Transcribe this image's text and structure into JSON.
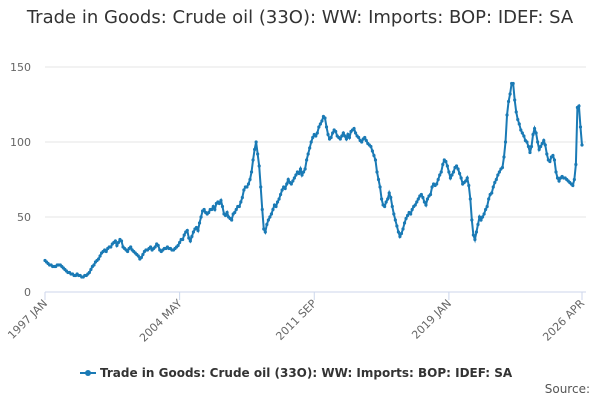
{
  "chart_data": {
    "type": "line",
    "title": "Trade in Goods: Crude oil (33O): WW: Imports: BOP: IDEF: SA",
    "source_label": "Source:",
    "categories": [
      "1997 JAN",
      null,
      null,
      null,
      null,
      null,
      null,
      null,
      null,
      null,
      null,
      null,
      null,
      null,
      null,
      null,
      null,
      null,
      null,
      null,
      null,
      null,
      null,
      null,
      null,
      null,
      null,
      null,
      null,
      null,
      null,
      null,
      null,
      null,
      null,
      null,
      null,
      null,
      null,
      null,
      null,
      null,
      null,
      null,
      null,
      null,
      null,
      null,
      null,
      null,
      null,
      null,
      null,
      null,
      null,
      null,
      null,
      null,
      null,
      null,
      null,
      null,
      null,
      null,
      null,
      null,
      null,
      null,
      null,
      null,
      null,
      null,
      null,
      null,
      null,
      null,
      null,
      null,
      null,
      null,
      null,
      null,
      null,
      null,
      null,
      null,
      null,
      null,
      "2004 MAY",
      null,
      null,
      null,
      null,
      null,
      null,
      null,
      null,
      null,
      null,
      null,
      null,
      null,
      null,
      null,
      null,
      null,
      null,
      null,
      null,
      null,
      null,
      null,
      null,
      null,
      null,
      null,
      null,
      null,
      null,
      null,
      null,
      null,
      null,
      null,
      null,
      null,
      null,
      null,
      null,
      null,
      null,
      null,
      null,
      null,
      null,
      null,
      null,
      null,
      null,
      null,
      null,
      null,
      null,
      null,
      null,
      null,
      null,
      null,
      null,
      null,
      null,
      null,
      null,
      null,
      null,
      null,
      null,
      null,
      null,
      null,
      null,
      null,
      null,
      null,
      null,
      null,
      null,
      null,
      null,
      null,
      null,
      null,
      null,
      null,
      null,
      null,
      "2011 SEP",
      null,
      null,
      null,
      null,
      null,
      null,
      null,
      null,
      null,
      null,
      null,
      null,
      null,
      null,
      null,
      null,
      null,
      null,
      null,
      null,
      null,
      null,
      null,
      null,
      null,
      null,
      null,
      null,
      null,
      null,
      null,
      null,
      null,
      null,
      null,
      null,
      null,
      null,
      null,
      null,
      null,
      null,
      null,
      null,
      null,
      null,
      null,
      null,
      null,
      null,
      null,
      null,
      null,
      null,
      null,
      null,
      null,
      null,
      null,
      null,
      null,
      null,
      null,
      null,
      null,
      null,
      null,
      null,
      null,
      null,
      null,
      null,
      null,
      null,
      null,
      null,
      null,
      null,
      null,
      null,
      null,
      null,
      null,
      null,
      null,
      null,
      null,
      "2019 JAN",
      null,
      null,
      null,
      null,
      null,
      null,
      null,
      null,
      null,
      null,
      null,
      null,
      null,
      null,
      null,
      null,
      null,
      null,
      null,
      null,
      null,
      null,
      null,
      null,
      null,
      null,
      null,
      null,
      null,
      null,
      null,
      null,
      null,
      null,
      null,
      null,
      null,
      null,
      null,
      null,
      null,
      null,
      null,
      null,
      null,
      null,
      null,
      null,
      null,
      null,
      null,
      null,
      null,
      null,
      null,
      null,
      null,
      null,
      null,
      null,
      null,
      null,
      null,
      null,
      null,
      null,
      null,
      null,
      null,
      null,
      null,
      null,
      null,
      null,
      null,
      null,
      null,
      null,
      null,
      null,
      null,
      null,
      null,
      null,
      null,
      null,
      "2026 APR"
    ],
    "series": [
      {
        "name": "Trade in Goods: Crude oil (33O): WW: Imports: BOP: IDEF: SA",
        "color": "#1a7ab5",
        "values": [
          21,
          20,
          19,
          18,
          18,
          17,
          17,
          17,
          18,
          18,
          18,
          17,
          16,
          15,
          14,
          13,
          13,
          12,
          12,
          11,
          11,
          12,
          11,
          11,
          10,
          10,
          11,
          11,
          12,
          13,
          15,
          17,
          18,
          20,
          21,
          22,
          24,
          26,
          27,
          28,
          27,
          29,
          30,
          30,
          32,
          33,
          34,
          31,
          33,
          35,
          34,
          30,
          29,
          28,
          27,
          29,
          30,
          28,
          27,
          26,
          25,
          24,
          22,
          23,
          25,
          27,
          28,
          28,
          29,
          30,
          28,
          29,
          30,
          32,
          31,
          28,
          27,
          28,
          29,
          29,
          30,
          29,
          29,
          28,
          28,
          29,
          30,
          31,
          33,
          35,
          35,
          38,
          40,
          41,
          36,
          34,
          37,
          40,
          42,
          43,
          41,
          46,
          50,
          54,
          55,
          53,
          52,
          53,
          55,
          55,
          57,
          55,
          59,
          60,
          59,
          61,
          57,
          52,
          51,
          53,
          50,
          49,
          48,
          52,
          53,
          55,
          57,
          57,
          60,
          63,
          68,
          70,
          70,
          72,
          75,
          80,
          88,
          95,
          100,
          92,
          84,
          70,
          55,
          42,
          40,
          45,
          48,
          50,
          52,
          55,
          58,
          57,
          60,
          62,
          65,
          68,
          70,
          69,
          72,
          75,
          73,
          72,
          74,
          76,
          78,
          80,
          79,
          82,
          78,
          80,
          82,
          88,
          92,
          96,
          100,
          103,
          105,
          104,
          106,
          110,
          112,
          114,
          117,
          116,
          110,
          105,
          102,
          103,
          106,
          108,
          107,
          104,
          103,
          102,
          104,
          106,
          104,
          102,
          105,
          103,
          107,
          108,
          109,
          106,
          104,
          103,
          101,
          100,
          102,
          103,
          101,
          99,
          98,
          97,
          94,
          91,
          88,
          80,
          75,
          70,
          62,
          58,
          57,
          60,
          62,
          66,
          63,
          57,
          52,
          48,
          44,
          40,
          37,
          39,
          42,
          46,
          49,
          51,
          53,
          52,
          55,
          57,
          58,
          60,
          62,
          64,
          65,
          63,
          60,
          58,
          62,
          64,
          65,
          70,
          72,
          71,
          72,
          75,
          78,
          80,
          85,
          88,
          87,
          84,
          80,
          76,
          78,
          80,
          83,
          84,
          82,
          79,
          76,
          72,
          73,
          74,
          76,
          71,
          62,
          48,
          38,
          35,
          40,
          45,
          50,
          48,
          50,
          52,
          55,
          57,
          62,
          65,
          66,
          70,
          73,
          75,
          78,
          80,
          82,
          83,
          90,
          100,
          118,
          127,
          132,
          139,
          139,
          128,
          120,
          115,
          112,
          108,
          106,
          104,
          101,
          100,
          97,
          93,
          97,
          105,
          109,
          106,
          100,
          95,
          97,
          99,
          101,
          98,
          92,
          88,
          87,
          90,
          91,
          88,
          80,
          76,
          74,
          76,
          77,
          76,
          76,
          75,
          74,
          73,
          72,
          71,
          75,
          85,
          123,
          124,
          110,
          98
        ]
      }
    ],
    "ylim": [
      0,
      150
    ],
    "yticks": [
      0,
      50,
      100,
      150
    ],
    "grid": true
  }
}
